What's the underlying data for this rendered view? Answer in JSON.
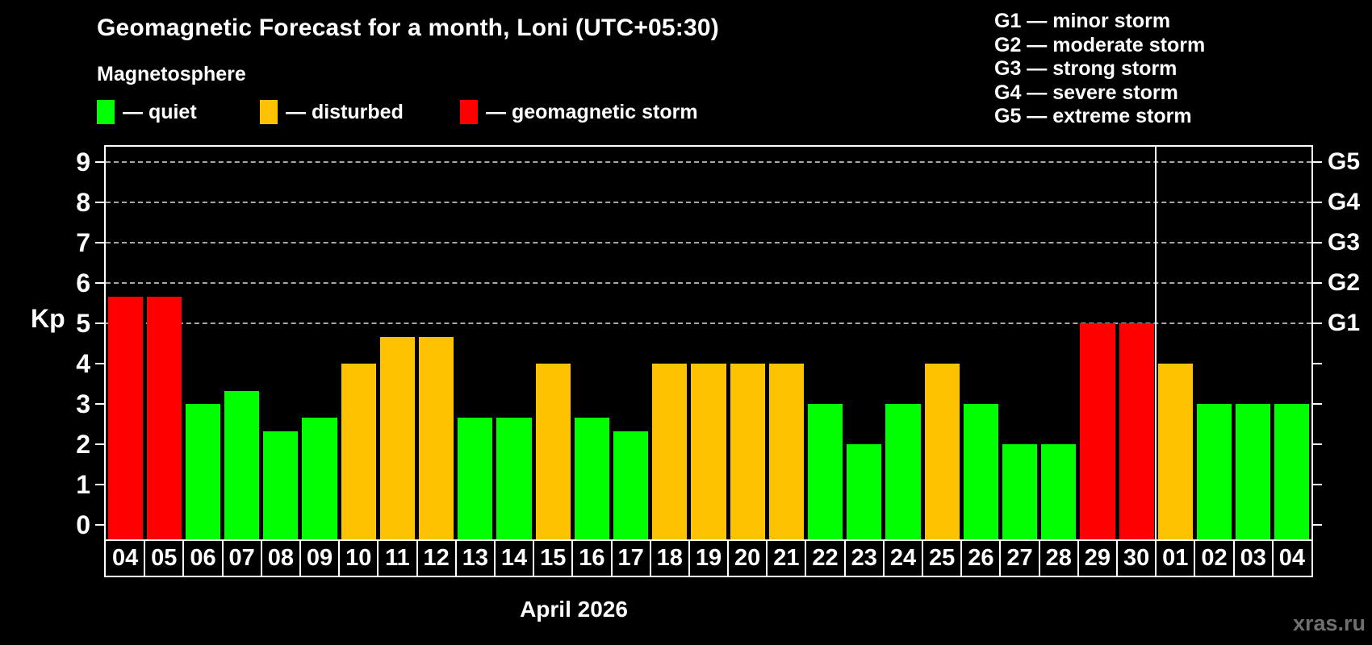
{
  "header": {
    "title": "Geomagnetic Forecast for a month, Loni (UTC+05:30)",
    "subtitle": "Magnetosphere"
  },
  "legend": {
    "items": [
      {
        "name": "quiet",
        "label": "— quiet",
        "color": "#00ff00"
      },
      {
        "name": "disturbed",
        "label": "— disturbed",
        "color": "#ffc200"
      },
      {
        "name": "storm",
        "label": "— geomagnetic storm",
        "color": "#ff0000"
      }
    ]
  },
  "g_scale_legend": {
    "items": [
      "G1 — minor storm",
      "G2 — moderate storm",
      "G3 — strong storm",
      "G4 — severe storm",
      "G5 — extreme storm"
    ]
  },
  "watermark": "xras.ru",
  "chart_data": {
    "type": "bar",
    "title": "Geomagnetic Forecast for a month, Loni (UTC+05:30)",
    "xlabel": "April 2026",
    "ylabel": "Kp",
    "ylim": [
      0,
      9
    ],
    "yticks": [
      0,
      1,
      2,
      3,
      4,
      5,
      6,
      7,
      8,
      9
    ],
    "grid_levels": [
      5,
      6,
      7,
      8,
      9
    ],
    "right_axis": {
      "5": "G1",
      "6": "G2",
      "7": "G3",
      "8": "G4",
      "9": "G5"
    },
    "legend_position": "top",
    "month_divider_after": "30",
    "categories": [
      "04",
      "05",
      "06",
      "07",
      "08",
      "09",
      "10",
      "11",
      "12",
      "13",
      "14",
      "15",
      "16",
      "17",
      "18",
      "19",
      "20",
      "21",
      "22",
      "23",
      "24",
      "25",
      "26",
      "27",
      "28",
      "29",
      "30",
      "01",
      "02",
      "03",
      "04"
    ],
    "values": [
      5.67,
      5.67,
      3,
      3.33,
      2.33,
      2.67,
      4,
      4.67,
      4.67,
      2.67,
      2.67,
      4,
      2.67,
      2.33,
      4,
      4,
      4,
      4,
      3,
      2,
      3,
      4,
      3,
      2,
      2,
      5,
      5,
      4,
      3,
      3,
      3
    ],
    "statuses": [
      "storm",
      "storm",
      "quiet",
      "quiet",
      "quiet",
      "quiet",
      "disturbed",
      "disturbed",
      "disturbed",
      "quiet",
      "quiet",
      "disturbed",
      "quiet",
      "quiet",
      "disturbed",
      "disturbed",
      "disturbed",
      "disturbed",
      "quiet",
      "quiet",
      "quiet",
      "disturbed",
      "quiet",
      "quiet",
      "quiet",
      "storm",
      "storm",
      "disturbed",
      "quiet",
      "quiet",
      "quiet"
    ],
    "status_colors": {
      "quiet": "#00ff00",
      "disturbed": "#ffc200",
      "storm": "#ff0000"
    },
    "grid_color": "#a8a8a8",
    "axis_color": "#ffffff",
    "background_color": "#000000",
    "watermark_color": "#6f6f6f"
  }
}
